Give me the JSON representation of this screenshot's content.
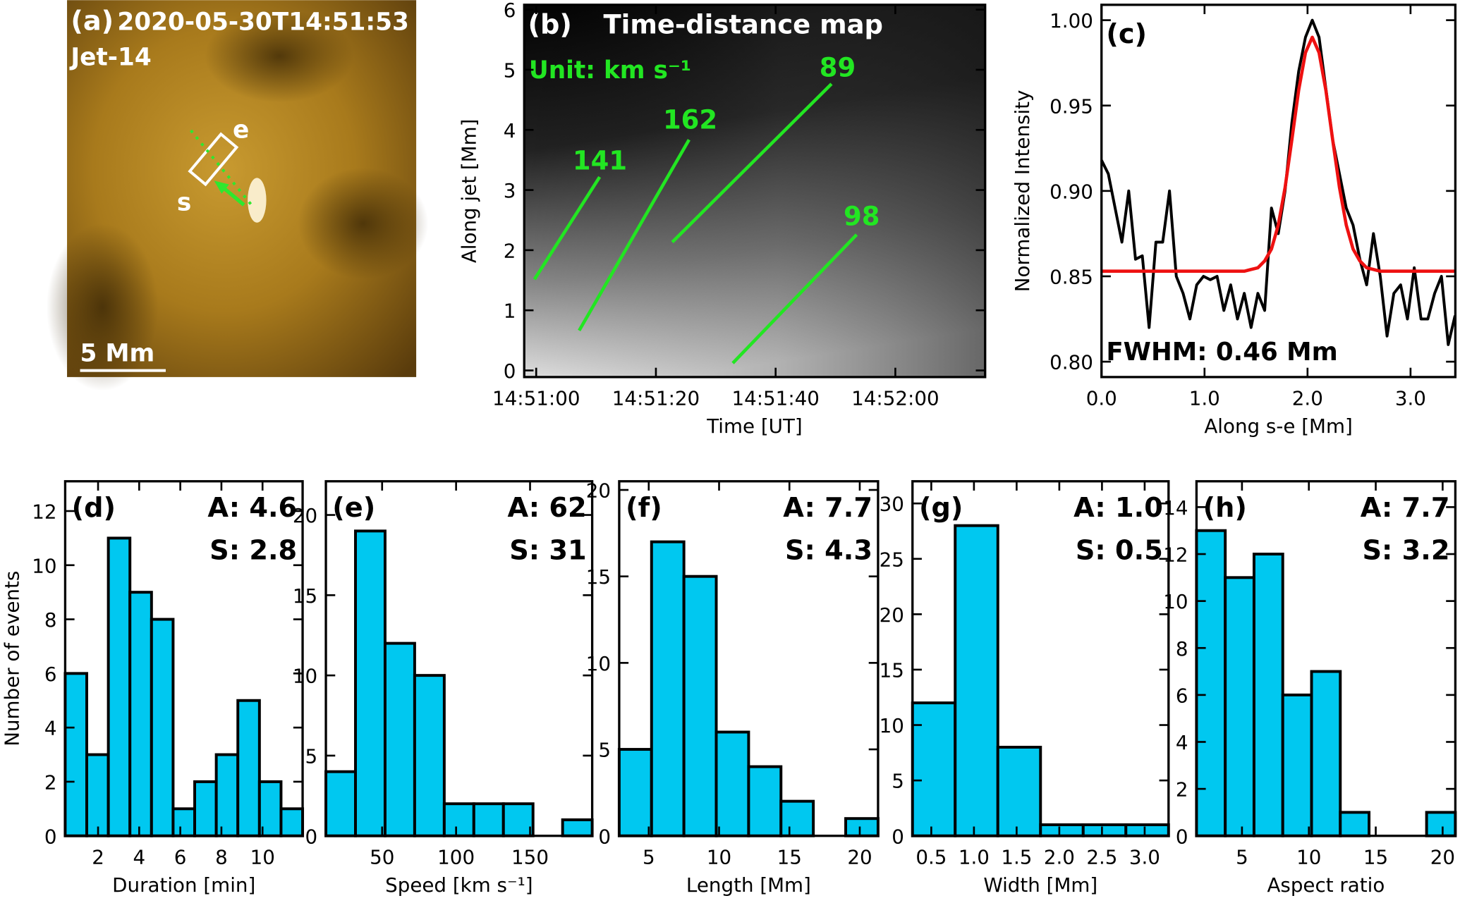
{
  "chart_data": [
    {
      "type": "image",
      "panel": "(a)",
      "title": "2020-05-30T14:51:53 UT",
      "annotations": [
        "Jet-14",
        "5 Mm",
        "e",
        "s"
      ]
    },
    {
      "type": "image",
      "panel": "(b)",
      "title": "Time-distance map",
      "subtitle": "Unit: km s⁻¹",
      "xlabel": "Time [UT]",
      "ylabel": "Along jet [Mm]",
      "xlim": [
        "14:50:58",
        "14:52:15"
      ],
      "xticks": [
        "14:51:00",
        "14:51:20",
        "14:51:40",
        "14:52:00"
      ],
      "ylim": [
        -0.11,
        6.08
      ],
      "yticks": [
        0,
        1,
        2,
        3,
        4,
        5,
        6
      ],
      "annotations": [
        "141",
        "162",
        "89",
        "98"
      ]
    },
    {
      "type": "line",
      "panel": "(c)",
      "xlabel": "Along s-e [Mm]",
      "ylabel": "Normalized Intensity",
      "xlim": [
        0,
        3.435
      ],
      "xticks": [
        {
          "value": 0,
          "label": "0.0"
        },
        {
          "value": 1,
          "label": "1.0"
        },
        {
          "value": 2,
          "label": "2.0"
        },
        {
          "value": 3,
          "label": "3.0"
        }
      ],
      "ylim": [
        0.791,
        1.009
      ],
      "yticks": [
        {
          "value": 0.8,
          "label": "0.80"
        },
        0.85,
        {
          "value": 0.9,
          "label": "0.90"
        },
        0.95,
        {
          "value": 1,
          "label": "1.00"
        }
      ],
      "x": [
        0,
        0.066,
        0.132,
        0.198,
        0.264,
        0.33,
        0.396,
        0.462,
        0.528,
        0.594,
        0.66,
        0.726,
        0.792,
        0.858,
        0.924,
        0.99,
        1.056,
        1.122,
        1.188,
        1.254,
        1.32,
        1.386,
        1.452,
        1.518,
        1.584,
        1.65,
        1.716,
        1.782,
        1.848,
        1.914,
        1.98,
        2.046,
        2.112,
        2.178,
        2.244,
        2.31,
        2.376,
        2.442,
        2.508,
        2.574,
        2.64,
        2.706,
        2.772,
        2.838,
        2.904,
        2.97,
        3.036,
        3.102,
        3.168,
        3.234,
        3.3,
        3.366,
        3.432
      ],
      "series": [
        {
          "color": "#000000",
          "values": [
            0.918,
            0.91,
            0.89,
            0.87,
            0.9,
            0.86,
            0.862,
            0.82,
            0.87,
            0.87,
            0.9,
            0.85,
            0.84,
            0.825,
            0.845,
            0.85,
            0.848,
            0.85,
            0.83,
            0.845,
            0.825,
            0.84,
            0.82,
            0.84,
            0.83,
            0.89,
            0.875,
            0.9,
            0.94,
            0.97,
            0.99,
            1.0,
            0.99,
            0.96,
            0.93,
            0.91,
            0.89,
            0.88,
            0.86,
            0.845,
            0.875,
            0.85,
            0.815,
            0.84,
            0.845,
            0.825,
            0.855,
            0.825,
            0.825,
            0.84,
            0.85,
            0.81,
            0.827
          ]
        },
        {
          "color": "#ee1111",
          "values": [
            0.853,
            0.853,
            0.853,
            0.853,
            0.853,
            0.853,
            0.853,
            0.853,
            0.853,
            0.853,
            0.853,
            0.853,
            0.853,
            0.853,
            0.853,
            0.853,
            0.853,
            0.853,
            0.853,
            0.853,
            0.853,
            0.853,
            0.854,
            0.855,
            0.859,
            0.866,
            0.88,
            0.902,
            0.93,
            0.959,
            0.981,
            0.99,
            0.981,
            0.959,
            0.93,
            0.902,
            0.88,
            0.866,
            0.859,
            0.855,
            0.854,
            0.853,
            0.853,
            0.853,
            0.853,
            0.853,
            0.853,
            0.853,
            0.853,
            0.853,
            0.853,
            0.853,
            0.853
          ]
        }
      ],
      "annotations": [
        "FWHM: 0.46 Mm"
      ]
    },
    {
      "type": "histogram",
      "panel": "(d)",
      "xlabel": "Duration [min]",
      "ylabel": "Number of events",
      "color": "#00c8f0",
      "bins": [
        0.4,
        1.45,
        2.5,
        3.55,
        4.6,
        5.65,
        6.7,
        7.75,
        8.8,
        9.85,
        10.9,
        11.95
      ],
      "values": [
        6,
        3,
        11,
        9,
        8,
        1,
        2,
        3,
        5,
        2,
        1
      ],
      "xlim": [
        0.4,
        11.95
      ],
      "xticks": [
        2,
        4,
        6,
        8,
        10
      ],
      "ylim": [
        0,
        13.1
      ],
      "yticks": [
        0,
        2,
        4,
        6,
        8,
        10,
        12
      ],
      "annotations": [
        "A: 4.6",
        "S: 2.8"
      ]
    },
    {
      "type": "histogram",
      "panel": "(e)",
      "xlabel": "Speed [km s⁻¹]",
      "color": "#00c8f0",
      "bins": [
        12,
        32,
        52,
        72,
        92,
        112,
        132,
        152,
        172,
        192
      ],
      "values": [
        4,
        19,
        12,
        10,
        2,
        2,
        2,
        0,
        1
      ],
      "xlim": [
        12,
        192
      ],
      "xticks": [
        50,
        100,
        150
      ],
      "ylim": [
        0,
        22.1
      ],
      "yticks": [
        0,
        5,
        10,
        15,
        20
      ],
      "annotations": [
        "A: 62",
        "S: 31"
      ]
    },
    {
      "type": "histogram",
      "panel": "(f)",
      "xlabel": "Length [Mm]",
      "color": "#00c8f0",
      "bins": [
        2.9,
        5.2,
        7.5,
        9.8,
        12.1,
        14.4,
        16.7,
        19.0,
        21.3
      ],
      "values": [
        5,
        17,
        15,
        6,
        4,
        2,
        0,
        1
      ],
      "xlim": [
        2.9,
        21.3
      ],
      "xticks": [
        5,
        10,
        15,
        20
      ],
      "ylim": [
        0,
        20.5
      ],
      "yticks": [
        0,
        5,
        10,
        15,
        20
      ],
      "annotations": [
        "A: 7.7",
        "S: 4.3"
      ]
    },
    {
      "type": "histogram",
      "panel": "(g)",
      "xlabel": "Width [Mm]",
      "color": "#00c8f0",
      "bins": [
        0.28,
        0.78,
        1.28,
        1.78,
        2.28,
        2.78,
        3.28
      ],
      "values": [
        12,
        28,
        8,
        1,
        1,
        1
      ],
      "xlim": [
        0.28,
        3.28
      ],
      "xticks": [
        0.5,
        {
          "value": 1,
          "label": "1.0"
        },
        1.5,
        {
          "value": 2,
          "label": "2.0"
        },
        2.5,
        {
          "value": 3,
          "label": "3.0"
        }
      ],
      "ylim": [
        0,
        32
      ],
      "yticks": [
        0,
        5,
        10,
        15,
        20,
        25,
        30
      ],
      "annotations": [
        "A: 1.0",
        "S: 0.5"
      ]
    },
    {
      "type": "histogram",
      "panel": "(h)",
      "xlabel": "Aspect ratio",
      "color": "#00c8f0",
      "bins": [
        1.6,
        3.75,
        5.9,
        8.05,
        10.2,
        12.35,
        14.5,
        16.65,
        18.8,
        20.95
      ],
      "values": [
        13,
        11,
        12,
        6,
        7,
        1,
        0,
        0,
        1
      ],
      "xlim": [
        1.6,
        20.95
      ],
      "xticks": [
        5,
        10,
        15,
        20
      ],
      "ylim": [
        0,
        15.1
      ],
      "yticks": [
        0,
        2,
        4,
        6,
        8,
        10,
        12,
        14
      ],
      "annotations": [
        "A: 7.7",
        "S: 3.2"
      ]
    }
  ]
}
